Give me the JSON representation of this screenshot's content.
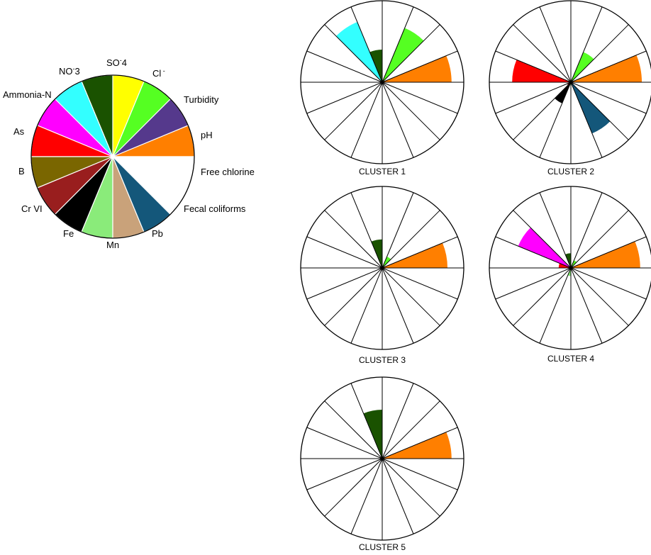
{
  "chart_data": {
    "type": "pie",
    "description": "Polar area (rose) diagrams of water quality parameters per cluster, each 16 equal sectors starting at East and proceeding counter-clockwise; radius is relative magnitude (0 to 1).",
    "legend": {
      "sectors": [
        {
          "label": "pH",
          "color": "#ff7f00"
        },
        {
          "label": "Turbidity",
          "color": "#55398c"
        },
        {
          "label": "Cl",
          "sup": " -",
          "sub": "",
          "color": "#55ff22"
        },
        {
          "label": "SO",
          "sup": "-",
          "sub": "4",
          "color": "#ffff00"
        },
        {
          "label": "NO",
          "sup": "-",
          "sub": "3",
          "color": "#1a5200"
        },
        {
          "label": "Ammonia-N",
          "color": "#33ffff"
        },
        {
          "label": "As",
          "color": "#ff00ff"
        },
        {
          "label": "B",
          "color": "#ff0000"
        },
        {
          "label": "Cr VI",
          "color": "#7a6600"
        },
        {
          "label": "Fe",
          "color": "#991e1e"
        },
        {
          "label": "Mn",
          "color": "#000000"
        },
        {
          "label": "Pb",
          "color": "#8aeb7a"
        },
        {
          "label": "Fecal coliforms",
          "color": "#c9a27a"
        },
        {
          "label": "Free chlorine",
          "color": "#14577a"
        },
        {
          "label": "",
          "color": "#ffffff"
        },
        {
          "label": "",
          "color": "#ffffff"
        }
      ]
    },
    "clusters": [
      {
        "title": "CLUSTER 1",
        "values": [
          0.85,
          0,
          0.72,
          0,
          0.4,
          0.8,
          0,
          0,
          0,
          0,
          0,
          0,
          0,
          0,
          0,
          0
        ]
      },
      {
        "title": "CLUSTER 2",
        "values": [
          0.87,
          0,
          0.4,
          0,
          0,
          0,
          0,
          0.72,
          0,
          0.05,
          0.28,
          0.04,
          0,
          0.68,
          0,
          0
        ]
      },
      {
        "title": "CLUSTER 3",
        "values": [
          0.8,
          0,
          0.15,
          0,
          0.35,
          0,
          0,
          0,
          0,
          0,
          0,
          0,
          0,
          0,
          0,
          0
        ]
      },
      {
        "title": "CLUSTER 4",
        "values": [
          0.85,
          0,
          0.1,
          0,
          0.18,
          0,
          0.7,
          0.15,
          0,
          0,
          0,
          0.1,
          0,
          0,
          0,
          0
        ]
      },
      {
        "title": "CLUSTER 5",
        "values": [
          0.85,
          0,
          0,
          0,
          0.6,
          0,
          0,
          0,
          0,
          0,
          0,
          0,
          0,
          0,
          0,
          0
        ]
      }
    ],
    "axis": {
      "r_range": [
        0,
        1
      ],
      "start_angle": "east",
      "direction": "counter-clockwise",
      "sectors": 16
    }
  }
}
